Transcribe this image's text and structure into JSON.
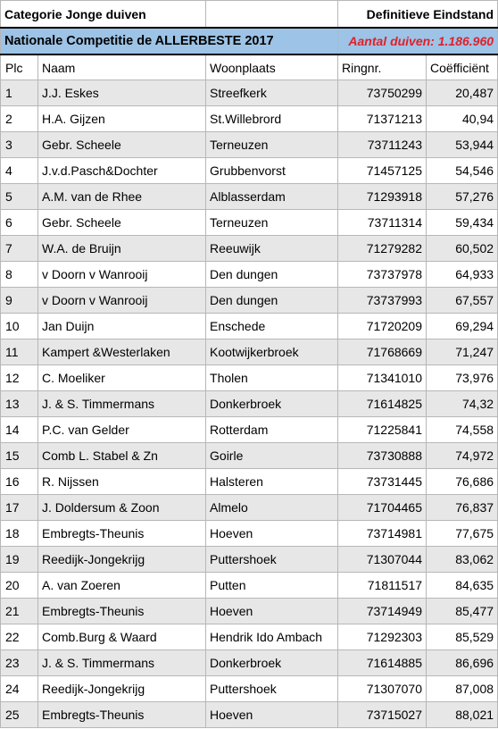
{
  "header": {
    "category": "Categorie Jonge duiven",
    "status": "Definitieve Eindstand",
    "competition": "Nationale Competitie de ALLERBESTE 2017",
    "pigeon_count": "Aantal duiven: 1.186.960"
  },
  "columns": {
    "plc": "Plc",
    "naam": "Naam",
    "woonplaats": "Woonplaats",
    "ringnr": "Ringnr.",
    "coefficient": "Coëfficiënt"
  },
  "rows": [
    {
      "plc": "1",
      "naam": "J.J. Eskes",
      "woonplaats": "Streefkerk",
      "ringnr": "73750299",
      "coef": "20,487"
    },
    {
      "plc": "2",
      "naam": "H.A. Gijzen",
      "woonplaats": "St.Willebrord",
      "ringnr": "71371213",
      "coef": "40,94"
    },
    {
      "plc": "3",
      "naam": "Gebr. Scheele",
      "woonplaats": "Terneuzen",
      "ringnr": "73711243",
      "coef": "53,944"
    },
    {
      "plc": "4",
      "naam": "J.v.d.Pasch&Dochter",
      "woonplaats": "Grubbenvorst",
      "ringnr": "71457125",
      "coef": "54,546"
    },
    {
      "plc": "5",
      "naam": "A.M. van de Rhee",
      "woonplaats": "Alblasserdam",
      "ringnr": "71293918",
      "coef": "57,276"
    },
    {
      "plc": "6",
      "naam": "Gebr. Scheele",
      "woonplaats": "Terneuzen",
      "ringnr": "73711314",
      "coef": "59,434"
    },
    {
      "plc": "7",
      "naam": "W.A. de Bruijn",
      "woonplaats": "Reeuwijk",
      "ringnr": "71279282",
      "coef": "60,502"
    },
    {
      "plc": "8",
      "naam": "v Doorn v Wanrooij",
      "woonplaats": "Den dungen",
      "ringnr": "73737978",
      "coef": "64,933"
    },
    {
      "plc": "9",
      "naam": "v Doorn v Wanrooij",
      "woonplaats": "Den dungen",
      "ringnr": "73737993",
      "coef": "67,557"
    },
    {
      "plc": "10",
      "naam": "Jan Duijn",
      "woonplaats": "Enschede",
      "ringnr": "71720209",
      "coef": "69,294"
    },
    {
      "plc": "11",
      "naam": "Kampert &Westerlaken",
      "woonplaats": "Kootwijkerbroek",
      "ringnr": "71768669",
      "coef": "71,247"
    },
    {
      "plc": "12",
      "naam": "C. Moeliker",
      "woonplaats": "Tholen",
      "ringnr": "71341010",
      "coef": "73,976"
    },
    {
      "plc": "13",
      "naam": "J. & S. Timmermans",
      "woonplaats": "Donkerbroek",
      "ringnr": "71614825",
      "coef": "74,32"
    },
    {
      "plc": "14",
      "naam": "P.C. van Gelder",
      "woonplaats": "Rotterdam",
      "ringnr": "71225841",
      "coef": "74,558"
    },
    {
      "plc": "15",
      "naam": "Comb L. Stabel & Zn",
      "woonplaats": "Goirle",
      "ringnr": "73730888",
      "coef": "74,972"
    },
    {
      "plc": "16",
      "naam": "R. Nijssen",
      "woonplaats": "Halsteren",
      "ringnr": "73731445",
      "coef": "76,686"
    },
    {
      "plc": "17",
      "naam": "J. Doldersum & Zoon",
      "woonplaats": "Almelo",
      "ringnr": "71704465",
      "coef": "76,837"
    },
    {
      "plc": "18",
      "naam": "Embregts-Theunis",
      "woonplaats": "Hoeven",
      "ringnr": "73714981",
      "coef": "77,675"
    },
    {
      "plc": "19",
      "naam": "Reedijk-Jongekrijg",
      "woonplaats": "Puttershoek",
      "ringnr": "71307044",
      "coef": "83,062"
    },
    {
      "plc": "20",
      "naam": "A. van Zoeren",
      "woonplaats": "Putten",
      "ringnr": "71811517",
      "coef": "84,635"
    },
    {
      "plc": "21",
      "naam": "Embregts-Theunis",
      "woonplaats": "Hoeven",
      "ringnr": "73714949",
      "coef": "85,477"
    },
    {
      "plc": "22",
      "naam": "Comb.Burg & Waard",
      "woonplaats": "Hendrik Ido Ambach",
      "ringnr": "71292303",
      "coef": "85,529"
    },
    {
      "plc": "23",
      "naam": "J. & S. Timmermans",
      "woonplaats": "Donkerbroek",
      "ringnr": "71614885",
      "coef": "86,696"
    },
    {
      "plc": "24",
      "naam": "Reedijk-Jongekrijg",
      "woonplaats": "Puttershoek",
      "ringnr": "71307070",
      "coef": "87,008"
    },
    {
      "plc": "25",
      "naam": "Embregts-Theunis",
      "woonplaats": "Hoeven",
      "ringnr": "73715027",
      "coef": "88,021"
    }
  ],
  "colors": {
    "title_band": "#9dc3e6",
    "alt_row": "#e7e7e7",
    "count_text": "#e0202a"
  }
}
